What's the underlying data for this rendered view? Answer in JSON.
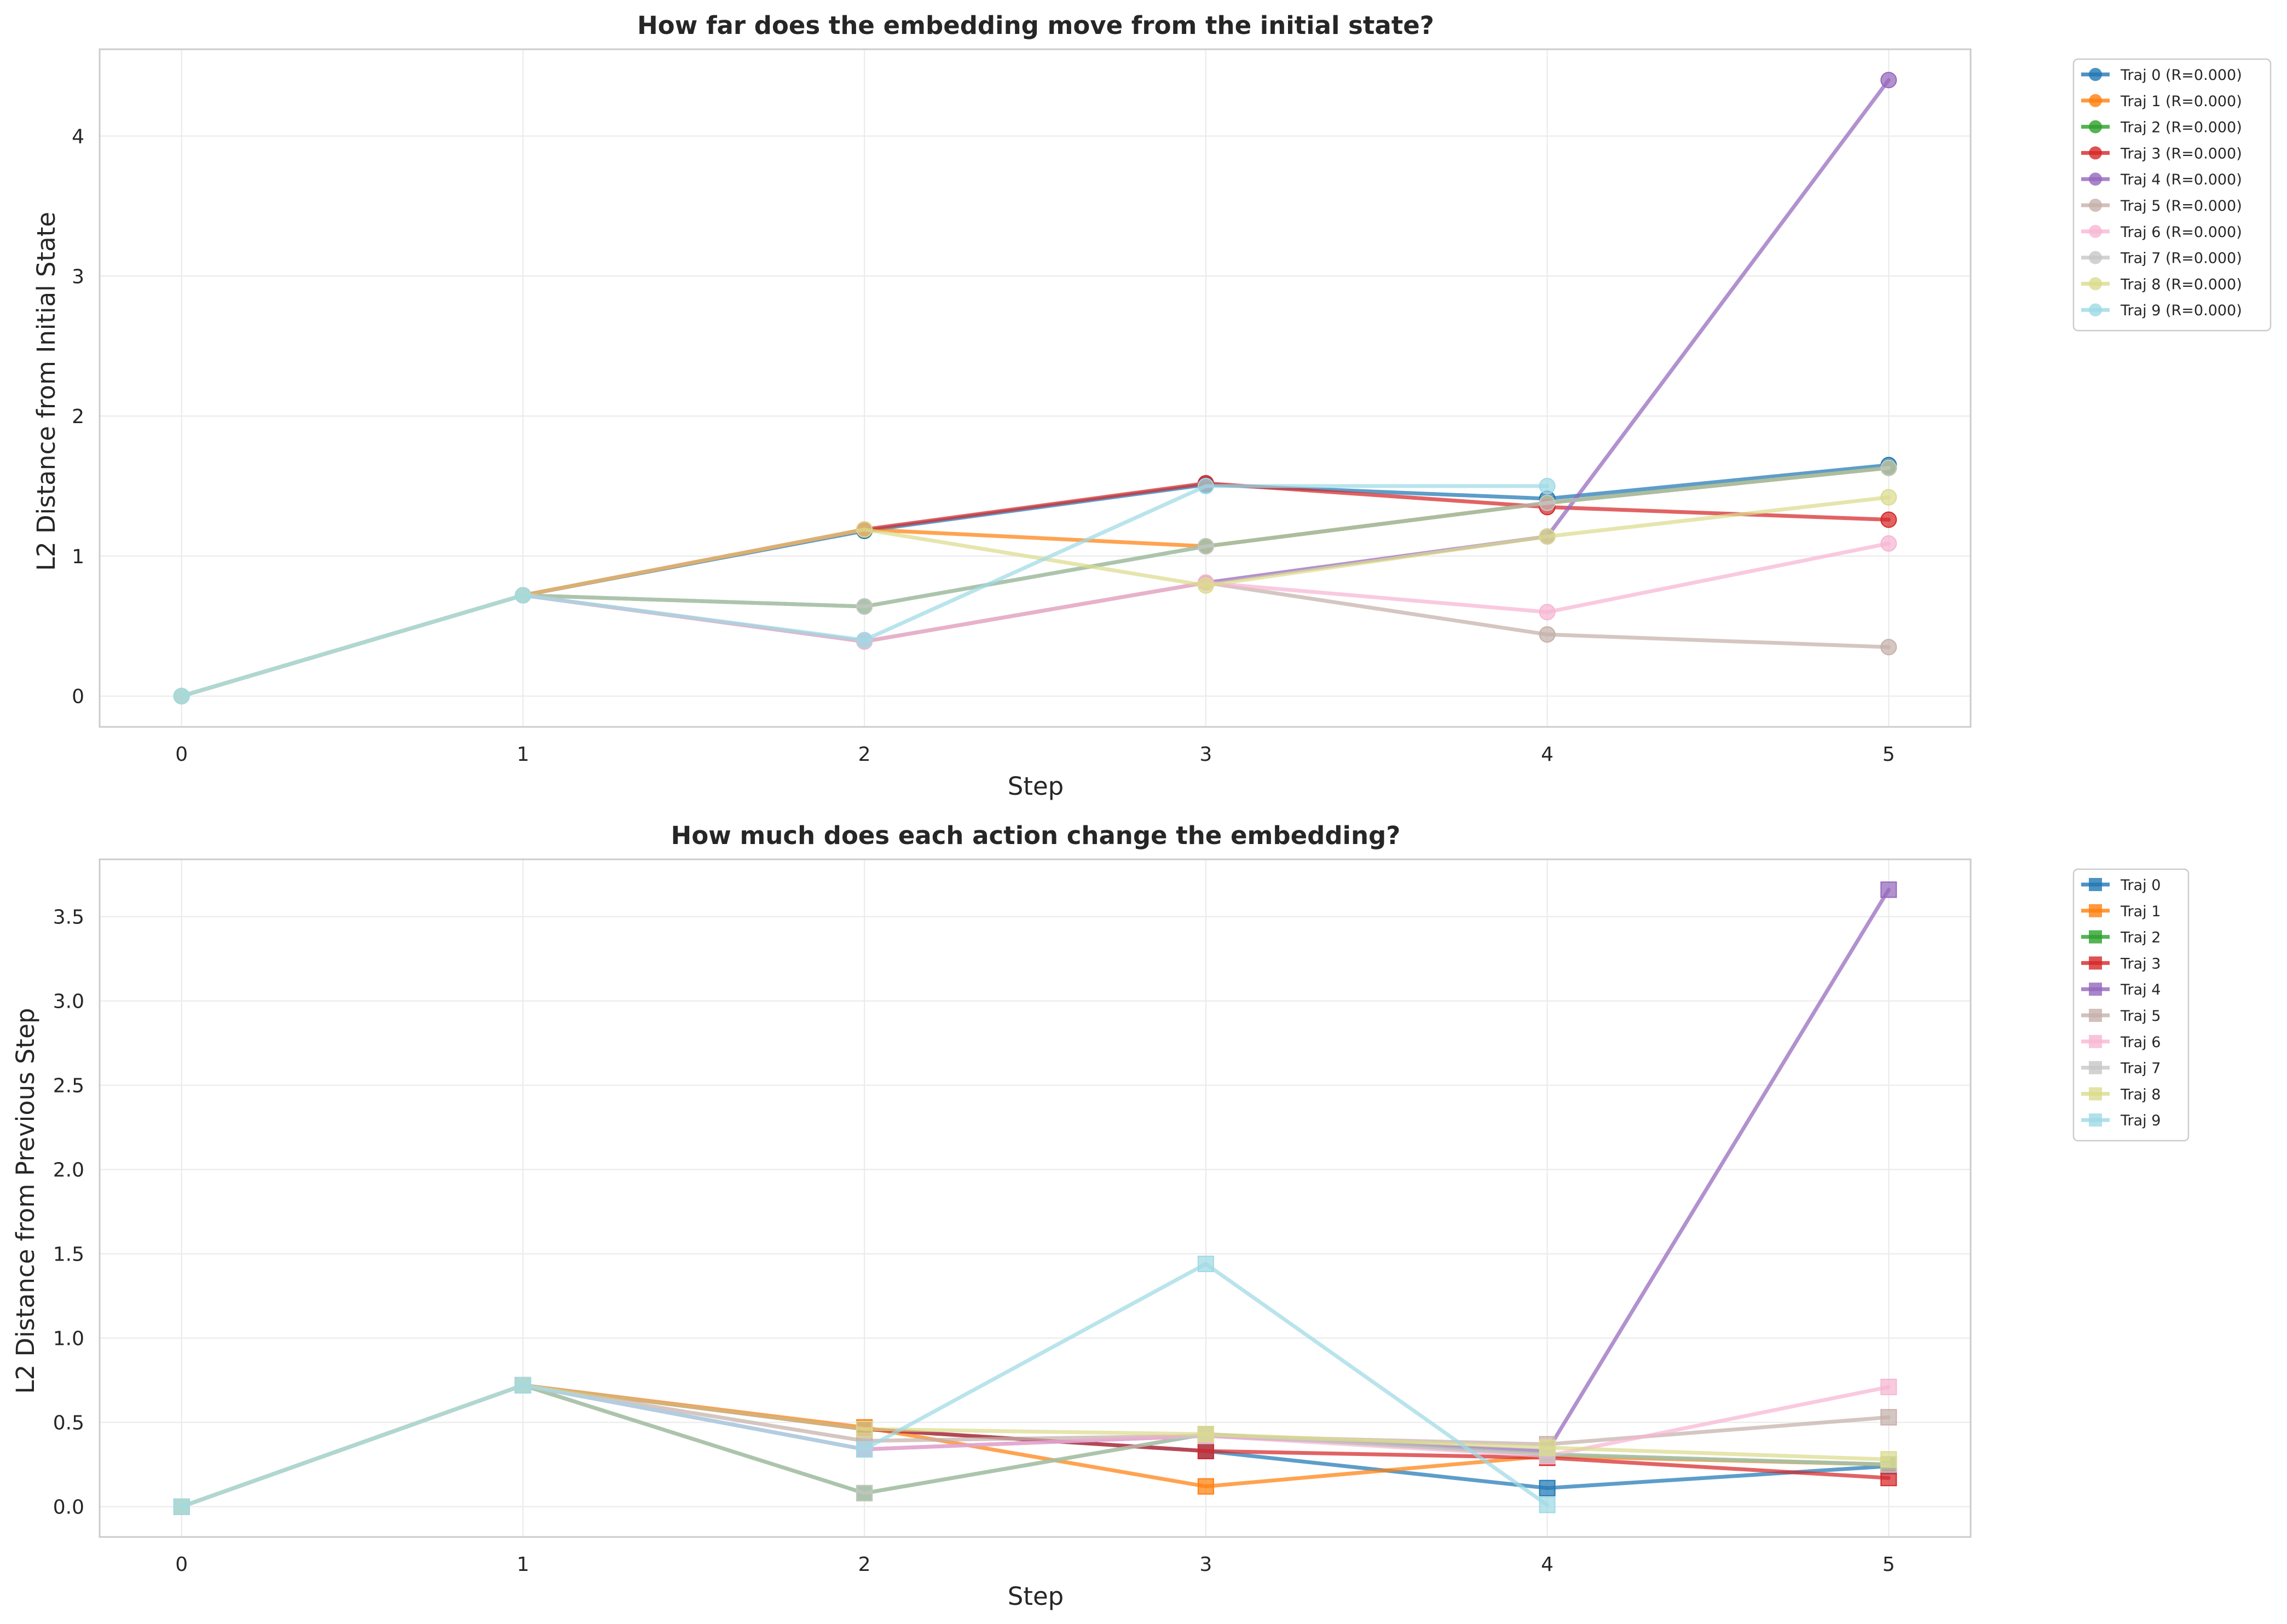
{
  "chart_data": [
    {
      "type": "line",
      "marker": "circle",
      "title": "How far does the embedding move from the initial state?",
      "xlabel": "Step",
      "ylabel": "L2 Distance from Initial State",
      "xlim": [
        -0.24,
        5.24
      ],
      "ylim": [
        -0.22,
        4.62
      ],
      "xticks": [
        "0",
        "1",
        "2",
        "3",
        "4",
        "5"
      ],
      "yticks": [
        "0",
        "1",
        "2",
        "3",
        "4"
      ],
      "grid": true,
      "legend_placement": "outside-top-right",
      "x": [
        0,
        1,
        2,
        3,
        4,
        5
      ],
      "series": [
        {
          "name": "Traj 0 (R=0.000)",
          "color": "#1f77b4",
          "values": [
            0,
            0.72,
            1.18,
            1.51,
            1.41,
            1.65
          ]
        },
        {
          "name": "Traj 1 (R=0.000)",
          "color": "#ff7f0e",
          "values": [
            0,
            0.72,
            1.19,
            1.07,
            1.38,
            1.63
          ]
        },
        {
          "name": "Traj 2 (R=0.000)",
          "color": "#2ca02c",
          "values": [
            0,
            0.72,
            0.64,
            1.07,
            1.38,
            1.63
          ]
        },
        {
          "name": "Traj 3 (R=0.000)",
          "color": "#d62728",
          "values": [
            0,
            0.72,
            1.19,
            1.52,
            1.35,
            1.26
          ]
        },
        {
          "name": "Traj 4 (R=0.000)",
          "color": "#9467bd",
          "values": [
            0,
            0.72,
            0.39,
            0.81,
            1.14,
            4.4
          ]
        },
        {
          "name": "Traj 5 (R=0.000)",
          "color": "#c5b0aa",
          "values": [
            0,
            0.72,
            0.39,
            0.81,
            0.44,
            0.35
          ]
        },
        {
          "name": "Traj 6 (R=0.000)",
          "color": "#f7b6d2",
          "values": [
            0,
            0.72,
            0.39,
            0.81,
            0.6,
            1.09
          ]
        },
        {
          "name": "Traj 7 (R=0.000)",
          "color": "#c7c7c7",
          "values": [
            0,
            0.72,
            0.64,
            1.07,
            1.38,
            1.63
          ]
        },
        {
          "name": "Traj 8 (R=0.000)",
          "color": "#dbdb8d",
          "values": [
            0,
            0.72,
            1.19,
            0.79,
            1.14,
            1.42
          ]
        },
        {
          "name": "Traj 9 (R=0.000)",
          "color": "#9edae5",
          "values": [
            0,
            0.72,
            0.4,
            1.5,
            1.5,
            null
          ]
        }
      ]
    },
    {
      "type": "line",
      "marker": "square",
      "title": "How much does each action change the embedding?",
      "xlabel": "Step",
      "ylabel": "L2 Distance from Previous Step",
      "xlim": [
        -0.24,
        5.24
      ],
      "ylim": [
        -0.18,
        3.84
      ],
      "xticks": [
        "0",
        "1",
        "2",
        "3",
        "4",
        "5"
      ],
      "yticks": [
        "0.0",
        "0.5",
        "1.0",
        "1.5",
        "2.0",
        "2.5",
        "3.0",
        "3.5"
      ],
      "grid": true,
      "legend_placement": "outside-top-right",
      "x": [
        0,
        1,
        2,
        3,
        4,
        5
      ],
      "series": [
        {
          "name": "Traj 0",
          "color": "#1f77b4",
          "values": [
            0,
            0.72,
            0.46,
            0.33,
            0.11,
            0.24
          ]
        },
        {
          "name": "Traj 1",
          "color": "#ff7f0e",
          "values": [
            0,
            0.72,
            0.47,
            0.12,
            0.3,
            0.25
          ]
        },
        {
          "name": "Traj 2",
          "color": "#2ca02c",
          "values": [
            0,
            0.72,
            0.08,
            0.43,
            0.31,
            0.25
          ]
        },
        {
          "name": "Traj 3",
          "color": "#d62728",
          "values": [
            0,
            0.72,
            0.46,
            0.33,
            0.29,
            0.17
          ]
        },
        {
          "name": "Traj 4",
          "color": "#9467bd",
          "values": [
            0,
            0.72,
            0.34,
            0.42,
            0.33,
            3.66
          ]
        },
        {
          "name": "Traj 5",
          "color": "#c5b0aa",
          "values": [
            0,
            0.72,
            0.39,
            0.42,
            0.37,
            0.53
          ]
        },
        {
          "name": "Traj 6",
          "color": "#f7b6d2",
          "values": [
            0,
            0.72,
            0.34,
            0.42,
            0.3,
            0.71
          ]
        },
        {
          "name": "Traj 7",
          "color": "#c7c7c7",
          "values": [
            0,
            0.72,
            0.08,
            0.43,
            0.31,
            0.25
          ]
        },
        {
          "name": "Traj 8",
          "color": "#dbdb8d",
          "values": [
            0,
            0.72,
            0.46,
            0.43,
            0.35,
            0.28
          ]
        },
        {
          "name": "Traj 9",
          "color": "#9edae5",
          "values": [
            0,
            0.72,
            0.34,
            1.44,
            0.01,
            null
          ]
        }
      ]
    }
  ]
}
